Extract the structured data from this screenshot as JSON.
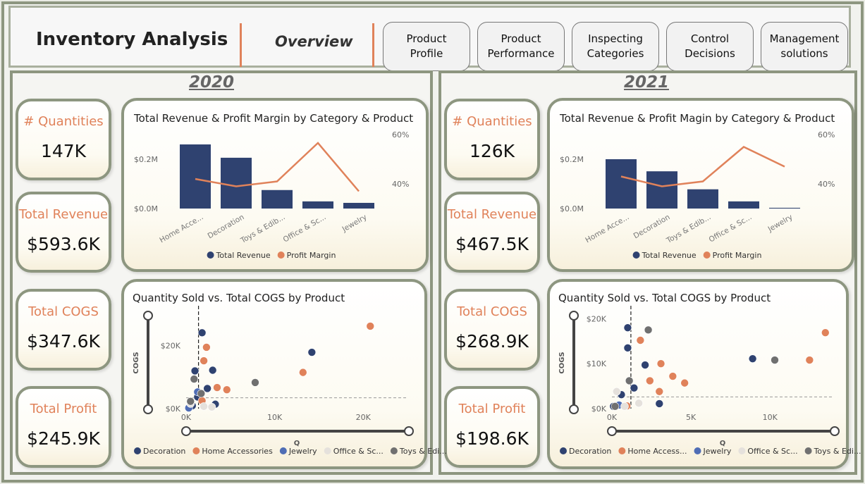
{
  "header": {
    "title": "Inventory Analysis",
    "subtitle": "Overview"
  },
  "nav": [
    "Product Profile",
    "Product Performance",
    "Inspecting Categories",
    "Control Decisions",
    "Management solutions"
  ],
  "panels": [
    {
      "year": "2020",
      "kpis": [
        {
          "label": "# Quantities",
          "value": "147K"
        },
        {
          "label": "Total Revenue",
          "value": "$593.6K"
        },
        {
          "label": "Total COGS",
          "value": "$347.6K"
        },
        {
          "label": "Total Profit",
          "value": "$245.9K"
        }
      ]
    },
    {
      "year": "2021",
      "kpis": [
        {
          "label": "# Quantities",
          "value": "126K"
        },
        {
          "label": "Total Revenue",
          "value": "$467.5K"
        },
        {
          "label": "Total COGS",
          "value": "$268.9K"
        },
        {
          "label": "Total Profit",
          "value": "$198.6K"
        }
      ]
    }
  ],
  "chart_data": [
    {
      "type": "bar_line",
      "title": "Total Revenue & Profit Margin by Category & Product",
      "categories": [
        "Home Acce...",
        "Decoration",
        "Toys & Edib...",
        "Office & Sc...",
        "Jewelry"
      ],
      "series": [
        {
          "name": "Total Revenue",
          "color": "#2f4270",
          "values": [
            260000,
            206000,
            75000,
            29000,
            23000
          ]
        },
        {
          "name": "Profit Margin",
          "color": "#e0825a",
          "axis": "y2",
          "values": [
            42,
            39,
            41,
            56.6,
            37
          ]
        }
      ],
      "ylim": [
        0,
        300000
      ],
      "yticks": [
        {
          "value": 0,
          "label": "$0.0M"
        },
        {
          "value": 200000,
          "label": "$0.2M"
        }
      ],
      "y2lim": [
        30,
        60
      ],
      "y2ticks": [
        {
          "value": 40,
          "label": "40%"
        },
        {
          "value": 60,
          "label": "60%"
        }
      ]
    },
    {
      "type": "scatter",
      "title": "Quantity Sold vs. Total COGS by Product",
      "x_label": "Q",
      "y_label": "COGS",
      "xlim": [
        0,
        25000
      ],
      "xticks": [
        {
          "value": 0,
          "label": "0K"
        },
        {
          "value": 10000,
          "label": "10K"
        },
        {
          "value": 20000,
          "label": "20K"
        }
      ],
      "ylim": [
        0,
        30000
      ],
      "yticks": [
        {
          "value": 0,
          "label": "$0K"
        },
        {
          "value": 20000,
          "label": "$20K"
        }
      ],
      "reference_lines": {
        "x": 1400,
        "y": 3450
      },
      "series": [
        {
          "name": "Decoration",
          "color": "#2f4270",
          "x": [
            14200,
            1800,
            3000,
            1000,
            2400,
            1300,
            3300,
            700
          ],
          "values": [
            17900,
            24100,
            12200,
            12000,
            6400,
            3700,
            1400,
            900
          ]
        },
        {
          "name": "Home Accessories",
          "color": "#e0825a",
          "x": [
            20800,
            13200,
            2300,
            2000,
            4600,
            3500,
            1800
          ],
          "values": [
            26200,
            11500,
            19500,
            15200,
            6000,
            6700,
            2500
          ]
        },
        {
          "name": "Jewelry",
          "color": "#4f6db5",
          "x": [
            1300,
            300
          ],
          "values": [
            5300,
            200
          ]
        },
        {
          "name": "Office & Sc...",
          "color": "#e5e1dc",
          "x": [
            500,
            2000,
            2900
          ],
          "values": [
            1600,
            700,
            500
          ]
        },
        {
          "name": "Toys & Edi...",
          "color": "#707070",
          "x": [
            7800,
            900,
            1700,
            500
          ],
          "values": [
            8300,
            9400,
            4800,
            2300
          ]
        }
      ]
    },
    {
      "type": "bar_line",
      "title": "Total Revenue & Profit Magin by Category & Product",
      "categories": [
        "Home Acce...",
        "Decoration",
        "Toys & Edib...",
        "Office & Sc...",
        "Jewelry"
      ],
      "series": [
        {
          "name": "Total Revenue",
          "color": "#2f4270",
          "values": [
            200000,
            151000,
            78000,
            29000,
            3000
          ]
        },
        {
          "name": "Profit Margin",
          "color": "#e0825a",
          "axis": "y2",
          "values": [
            43,
            39,
            41,
            55,
            47
          ]
        }
      ],
      "ylim": [
        0,
        300000
      ],
      "yticks": [
        {
          "value": 0,
          "label": "$0.0M"
        },
        {
          "value": 200000,
          "label": "$0.2M"
        }
      ],
      "y2lim": [
        30,
        60
      ],
      "y2ticks": [
        {
          "value": 40,
          "label": "40%"
        },
        {
          "value": 60,
          "label": "60%"
        }
      ]
    },
    {
      "type": "scatter",
      "title": "Quantity Sold vs. Total COGS by Product",
      "x_label": "Q",
      "y_label": "COGS",
      "xlim": [
        0,
        14000
      ],
      "xticks": [
        {
          "value": 0,
          "label": "0K"
        },
        {
          "value": 5000,
          "label": "5K"
        },
        {
          "value": 10000,
          "label": "10K"
        }
      ],
      "ylim": [
        0,
        21000
      ],
      "yticks": [
        {
          "value": 0,
          "label": "$0K"
        },
        {
          "value": 10000,
          "label": "$10K"
        },
        {
          "value": 20000,
          "label": "$20K"
        }
      ],
      "reference_lines": {
        "x": 1200,
        "y": 2600
      },
      "series": [
        {
          "name": "Decoration",
          "color": "#2f4270",
          "x": [
            8900,
            1000,
            1000,
            2100,
            1400,
            3000,
            600,
            100
          ],
          "values": [
            11100,
            18000,
            13500,
            9700,
            4600,
            1100,
            3100,
            500
          ]
        },
        {
          "name": "Home Access...",
          "color": "#e0825a",
          "x": [
            13500,
            12500,
            1800,
            3100,
            3850,
            4600,
            3000,
            2400,
            950
          ],
          "values": [
            16900,
            10800,
            15200,
            10000,
            7200,
            5700,
            3800,
            6200,
            600
          ]
        },
        {
          "name": "Jewelry",
          "color": "#4f6db5",
          "x": [
            450
          ],
          "values": [
            800
          ]
        },
        {
          "name": "Office & Sc...",
          "color": "#e5e1dc",
          "x": [
            300,
            1700,
            800
          ],
          "values": [
            3800,
            1200,
            500
          ]
        },
        {
          "name": "Toys & Edi...",
          "color": "#707070",
          "x": [
            10300,
            2300,
            1100,
            200
          ],
          "values": [
            10800,
            17500,
            6200,
            500
          ]
        }
      ]
    }
  ]
}
